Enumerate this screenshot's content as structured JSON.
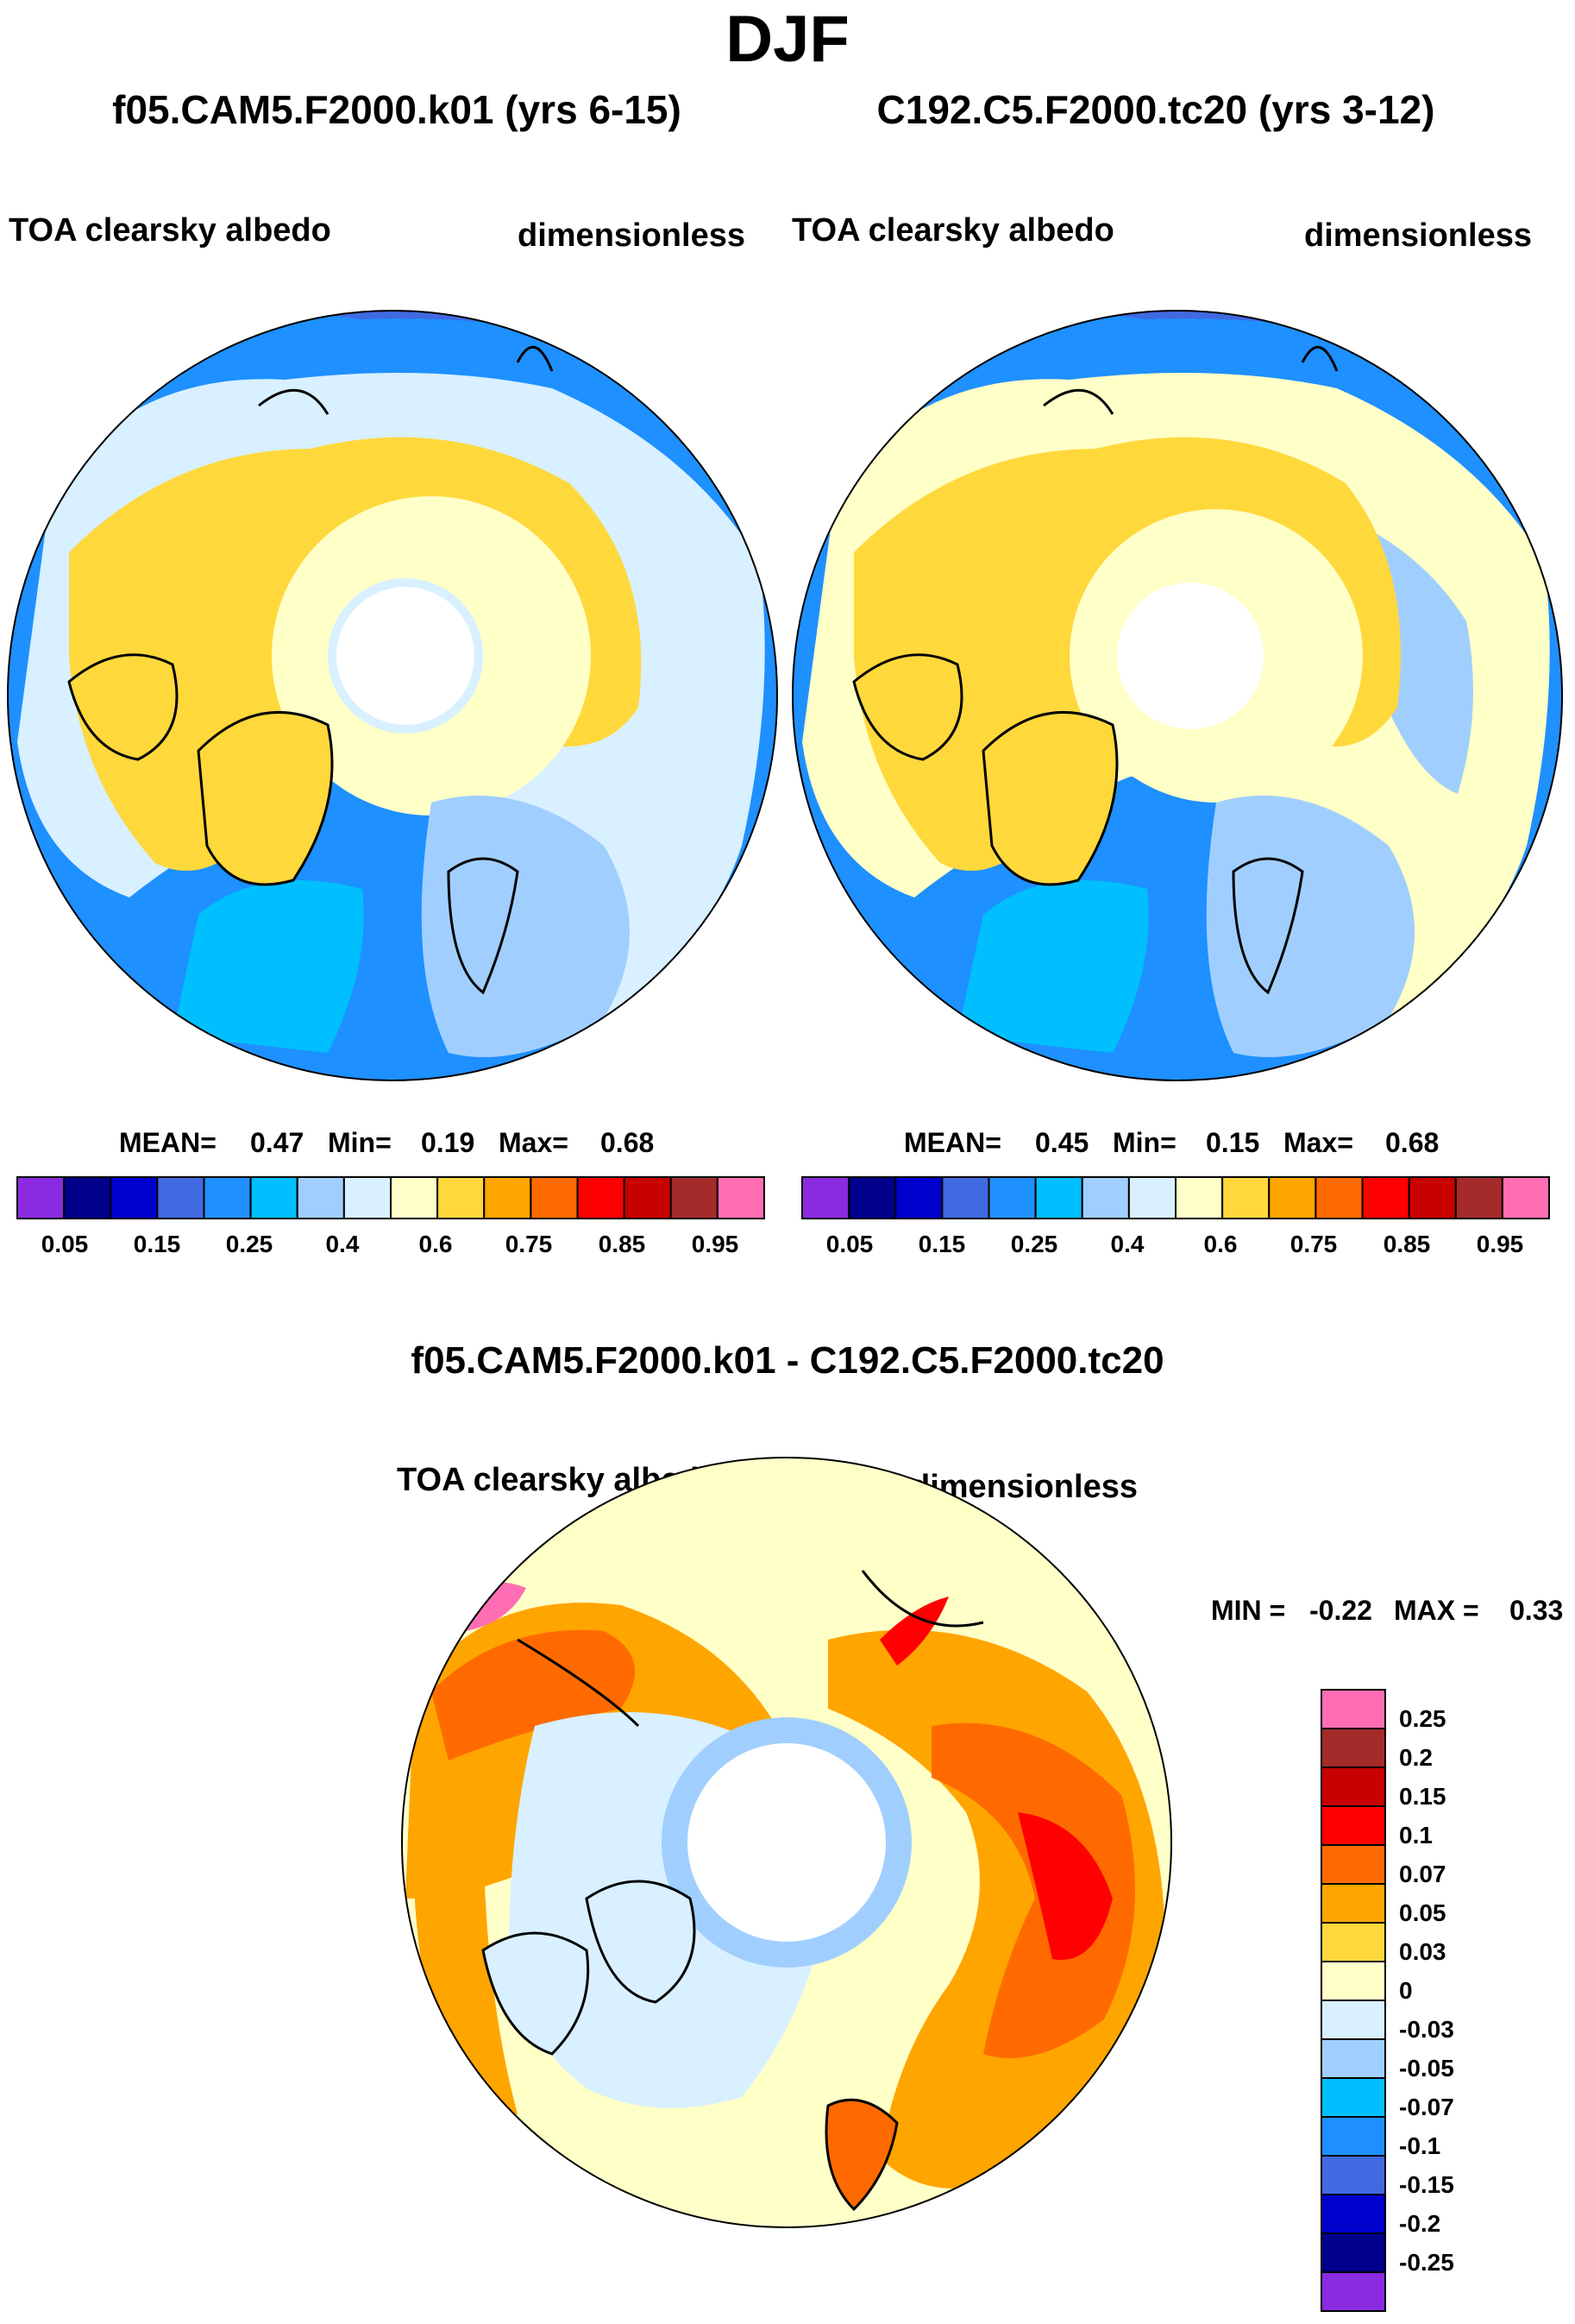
{
  "chart_data": [
    {
      "type": "heatmap",
      "projection": "north-polar-stereographic",
      "season": "DJF",
      "title": "f05.CAM5.F2000.k01 (yrs 6-15)",
      "left_label": "TOA clearsky albedo",
      "right_label": "dimensionless",
      "stats": {
        "mean_label": "MEAN=",
        "mean": "0.47",
        "min_label": "Min=",
        "min": "0.19",
        "max_label": "Max=",
        "max": "0.68"
      },
      "colorbar": {
        "orientation": "horizontal",
        "levels": [
          "0.05",
          "0.15",
          "0.25",
          "0.4",
          "0.6",
          "0.75",
          "0.85",
          "0.95"
        ],
        "colors": [
          "#8a2be2",
          "#00008b",
          "#0000cd",
          "#4169e1",
          "#1e90ff",
          "#00bfff",
          "#a0cfff",
          "#d8f0ff",
          "#ffffc8",
          "#ffd83c",
          "#ffa500",
          "#ff6a00",
          "#ff0000",
          "#c80000",
          "#a52a2a",
          "#ff6eb4"
        ]
      }
    },
    {
      "type": "heatmap",
      "projection": "north-polar-stereographic",
      "season": "DJF",
      "title": "C192.C5.F2000.tc20 (yrs 3-12)",
      "left_label": "TOA clearsky albedo",
      "right_label": "dimensionless",
      "stats": {
        "mean_label": "MEAN=",
        "mean": "0.45",
        "min_label": "Min=",
        "min": "0.15",
        "max_label": "Max=",
        "max": "0.68"
      },
      "colorbar": {
        "orientation": "horizontal",
        "levels": [
          "0.05",
          "0.15",
          "0.25",
          "0.4",
          "0.6",
          "0.75",
          "0.85",
          "0.95"
        ],
        "colors": [
          "#8a2be2",
          "#00008b",
          "#0000cd",
          "#4169e1",
          "#1e90ff",
          "#00bfff",
          "#a0cfff",
          "#d8f0ff",
          "#ffffc8",
          "#ffd83c",
          "#ffa500",
          "#ff6a00",
          "#ff0000",
          "#c80000",
          "#a52a2a",
          "#ff6eb4"
        ]
      }
    },
    {
      "type": "heatmap",
      "projection": "north-polar-stereographic",
      "title": "f05.CAM5.F2000.k01 - C192.C5.F2000.tc20",
      "left_label": "TOA clearsky albedo",
      "right_label": "dimensionless",
      "stats": {
        "min_label": "MIN =",
        "min": "-0.22",
        "max_label": "MAX =",
        "max": "0.33"
      },
      "colorbar": {
        "orientation": "vertical",
        "levels": [
          "0.25",
          "0.2",
          "0.15",
          "0.1",
          "0.07",
          "0.05",
          "0.03",
          "0",
          "-0.03",
          "-0.05",
          "-0.07",
          "-0.1",
          "-0.15",
          "-0.2",
          "-0.25"
        ],
        "colors": [
          "#ff6eb4",
          "#a52a2a",
          "#c80000",
          "#ff0000",
          "#ff6a00",
          "#ffa500",
          "#ffd83c",
          "#ffffc8",
          "#d8f0ff",
          "#a0cfff",
          "#00bfff",
          "#1e90ff",
          "#4169e1",
          "#0000cd",
          "#00008b",
          "#8a2be2"
        ]
      }
    }
  ],
  "figure": {
    "main_title": "DJF"
  }
}
